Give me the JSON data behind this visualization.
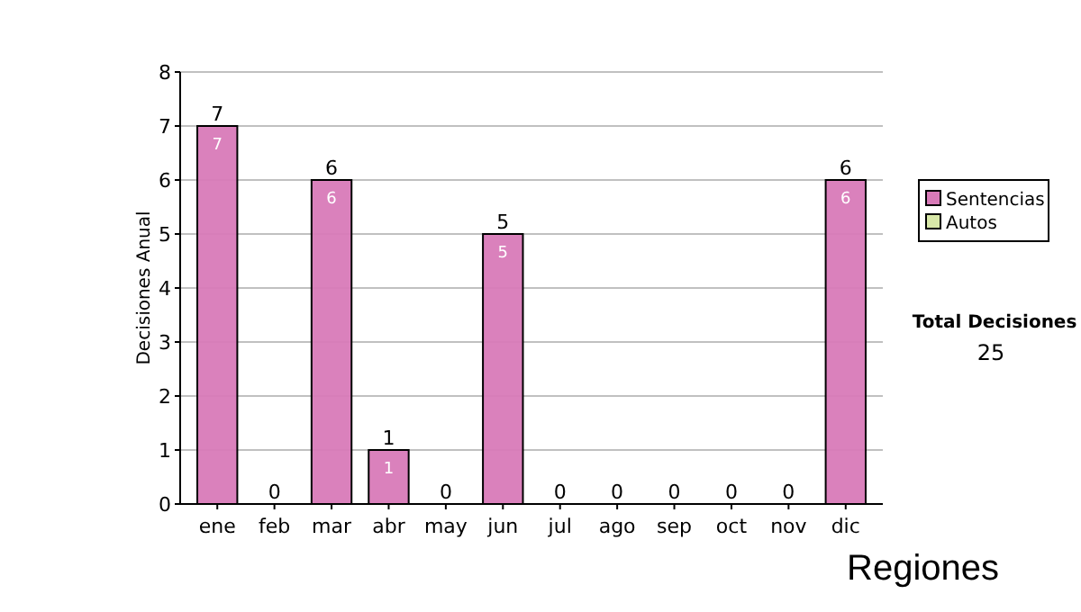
{
  "chart_data": {
    "type": "bar",
    "ylabel": "Decisiones Anual",
    "categories": [
      "ene",
      "feb",
      "mar",
      "abr",
      "may",
      "jun",
      "jul",
      "ago",
      "sep",
      "oct",
      "nov",
      "dic"
    ],
    "series": [
      {
        "name": "Sentencias",
        "color": "#d87ab8",
        "values": [
          7,
          0,
          6,
          1,
          0,
          5,
          0,
          0,
          0,
          0,
          0,
          6
        ],
        "value_labels": [
          "7",
          null,
          "6",
          "1",
          null,
          "5",
          null,
          null,
          null,
          null,
          null,
          "6"
        ]
      },
      {
        "name": "Autos",
        "color": "#d8e8a8",
        "values": [
          0,
          0,
          0,
          0,
          0,
          0,
          0,
          0,
          0,
          0,
          0,
          0
        ]
      }
    ],
    "stacked": true,
    "totals": [
      "7",
      "0",
      "6",
      "1",
      "0",
      "5",
      "0",
      "0",
      "0",
      "0",
      "0",
      "6"
    ],
    "ylim": [
      0,
      8
    ],
    "yticks": [
      0,
      1,
      2,
      3,
      4,
      5,
      6,
      7,
      8
    ],
    "grid": "y",
    "legend": "right",
    "annotations": [
      "Total Decisiones",
      "25",
      "Regiones"
    ]
  }
}
